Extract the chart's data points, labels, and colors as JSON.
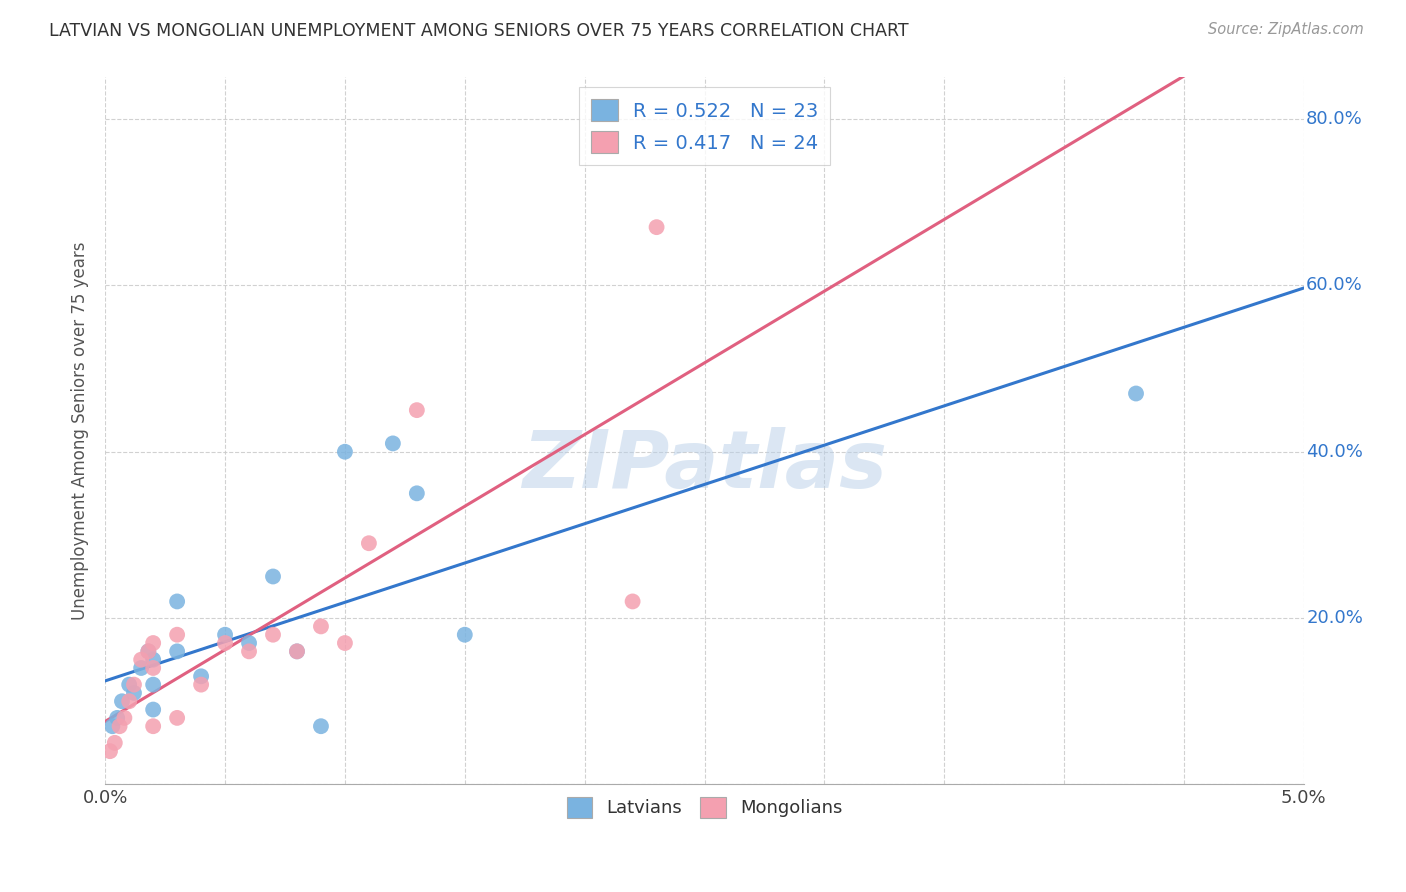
{
  "title": "LATVIAN VS MONGOLIAN UNEMPLOYMENT AMONG SENIORS OVER 75 YEARS CORRELATION CHART",
  "source": "Source: ZipAtlas.com",
  "ylabel": "Unemployment Among Seniors over 75 years",
  "xlim": [
    0.0,
    0.05
  ],
  "ylim": [
    0.0,
    0.85
  ],
  "x_ticks": [
    0.0,
    0.005,
    0.01,
    0.015,
    0.02,
    0.025,
    0.03,
    0.035,
    0.04,
    0.045,
    0.05
  ],
  "y_ticks": [
    0.0,
    0.2,
    0.4,
    0.6,
    0.8
  ],
  "latvian_color": "#7ab3e0",
  "mongolian_color": "#f4a0b0",
  "trend_latvian_color": "#3377cc",
  "trend_mongolian_color": "#e06080",
  "watermark": "ZIPatlas",
  "legend_R_latvian": "0.522",
  "legend_N_latvian": "23",
  "legend_R_mongolian": "0.417",
  "legend_N_mongolian": "24",
  "latvian_x": [
    0.0003,
    0.0005,
    0.0007,
    0.001,
    0.0012,
    0.0015,
    0.0018,
    0.002,
    0.002,
    0.002,
    0.003,
    0.003,
    0.004,
    0.005,
    0.006,
    0.007,
    0.008,
    0.009,
    0.01,
    0.012,
    0.013,
    0.015,
    0.043
  ],
  "latvian_y": [
    0.07,
    0.08,
    0.1,
    0.12,
    0.11,
    0.14,
    0.16,
    0.12,
    0.15,
    0.09,
    0.16,
    0.22,
    0.13,
    0.18,
    0.17,
    0.25,
    0.16,
    0.07,
    0.4,
    0.41,
    0.35,
    0.18,
    0.47
  ],
  "mongolian_x": [
    0.0002,
    0.0004,
    0.0006,
    0.0008,
    0.001,
    0.0012,
    0.0015,
    0.0018,
    0.002,
    0.002,
    0.002,
    0.003,
    0.003,
    0.004,
    0.005,
    0.006,
    0.007,
    0.008,
    0.009,
    0.01,
    0.011,
    0.013,
    0.022,
    0.023
  ],
  "mongolian_y": [
    0.04,
    0.05,
    0.07,
    0.08,
    0.1,
    0.12,
    0.15,
    0.16,
    0.14,
    0.17,
    0.07,
    0.18,
    0.08,
    0.12,
    0.17,
    0.16,
    0.18,
    0.16,
    0.19,
    0.17,
    0.29,
    0.45,
    0.22,
    0.67
  ]
}
